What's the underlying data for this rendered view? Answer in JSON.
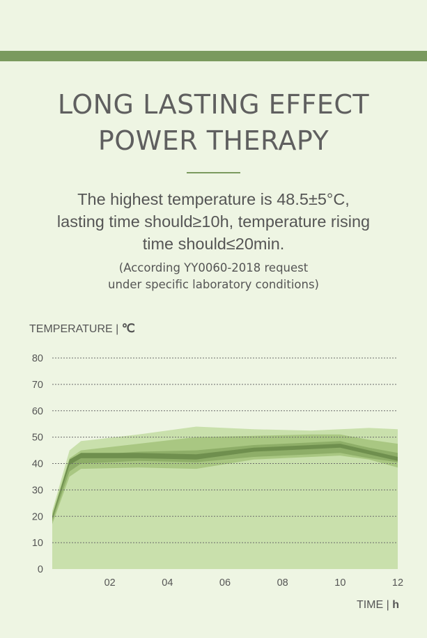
{
  "header": {
    "title_line1": "LONG LASTING EFFECT",
    "title_line2": "POWER THERAPY"
  },
  "description": {
    "line1": "The highest temperature is 48.5±5°C,",
    "line2": "lasting time should≥10h, temperature rising",
    "line3": "time should≤20min."
  },
  "note": {
    "line1": "(According YY0060-2018 request",
    "line2": "under specific laboratory conditions)"
  },
  "colors": {
    "accent": "#7a9a5e",
    "background": "#eef5e3"
  },
  "chart_data": {
    "type": "area",
    "ylabel": "TEMPERATURE | ",
    "ylabel_unit": "℃",
    "xlabel": "TIME | ",
    "xlabel_unit": "h",
    "ylim": [
      0,
      80
    ],
    "xlim": [
      0,
      12
    ],
    "yticks": [
      "0",
      "10",
      "20",
      "30",
      "40",
      "50",
      "60",
      "70",
      "80"
    ],
    "xticks": [
      "02",
      "04",
      "06",
      "08",
      "10",
      "12"
    ],
    "grid": true,
    "x": [
      0,
      0.6,
      1,
      3,
      5,
      7,
      9,
      10,
      11,
      12
    ],
    "bands": [
      {
        "upper": [
          22,
          45,
          48.5,
          51,
          54,
          53,
          52.5,
          53,
          53.5,
          53
        ],
        "lower": [
          0,
          0,
          0,
          0,
          0,
          0,
          0,
          0,
          0,
          0
        ],
        "color": "#c9e0ac"
      },
      {
        "upper": [
          21,
          42,
          45,
          47.5,
          50,
          50.5,
          51,
          51,
          49,
          47.5
        ],
        "lower": [
          17,
          35,
          38,
          38.5,
          38,
          41.5,
          42.5,
          43,
          41.5,
          38.5
        ],
        "color": "#a9c782"
      },
      {
        "upper": [
          19,
          40,
          43,
          44.5,
          45,
          47,
          48,
          48.5,
          46,
          44
        ],
        "lower": [
          18,
          37,
          40,
          41,
          40.5,
          42.5,
          43.5,
          44,
          42,
          40.5
        ],
        "color": "#8eae68"
      },
      {
        "upper": [
          20,
          41.5,
          44,
          44,
          43.5,
          46,
          47,
          47.5,
          45,
          42.5
        ],
        "lower": [
          19,
          39.5,
          42,
          42,
          41.5,
          44.5,
          45.5,
          46,
          43.5,
          41
        ],
        "color": "#6f8f4e"
      }
    ]
  }
}
